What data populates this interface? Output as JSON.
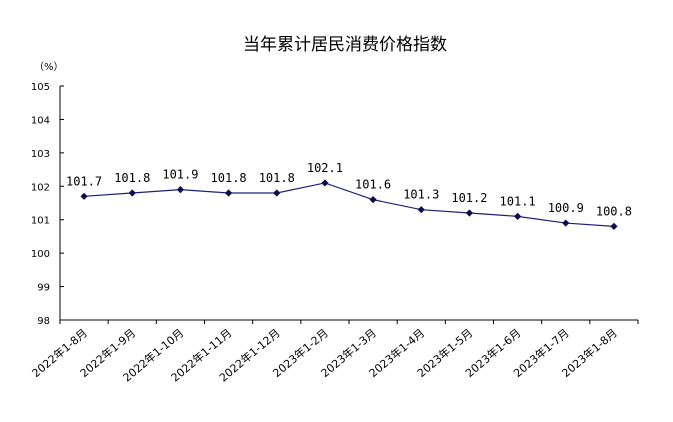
{
  "chart_data": {
    "type": "line",
    "title": "当年累计居民消费价格指数",
    "unit_label": "（%）",
    "xlabel": "",
    "ylabel": "",
    "ylim": [
      98,
      105
    ],
    "yticks": [
      98,
      99,
      100,
      101,
      102,
      103,
      104,
      105
    ],
    "grid": false,
    "legend": "none",
    "line_color": "#1f1f7a",
    "marker_color": "#0d0d4d",
    "categories": [
      "2022年1-8月",
      "2022年1-9月",
      "2022年1-10月",
      "2022年1-11月",
      "2022年1-12月",
      "2023年1-2月",
      "2023年1-3月",
      "2023年1-4月",
      "2023年1-5月",
      "2023年1-6月",
      "2023年1-7月",
      "2023年1-8月"
    ],
    "values": [
      101.7,
      101.8,
      101.9,
      101.8,
      101.8,
      102.1,
      101.6,
      101.3,
      101.2,
      101.1,
      100.9,
      100.8
    ],
    "data_labels": [
      "101.7",
      "101.8",
      "101.9",
      "101.8",
      "101.8",
      "102.1",
      "101.6",
      "101.3",
      "101.2",
      "101.1",
      "100.9",
      "100.8"
    ]
  }
}
